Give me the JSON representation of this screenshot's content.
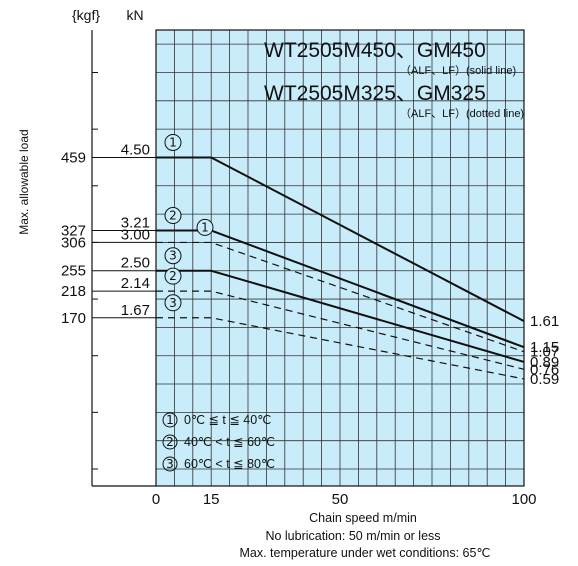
{
  "chart_data": {
    "type": "line",
    "title_solid": "WT2505M450、GM450",
    "subtitle_solid": "（ALF、LF）(solid line)",
    "title_dotted": "WT2505M325、GM325",
    "subtitle_dotted": "（ALF、LF）(dotted line)",
    "ylabel": "Max. allowable load",
    "y_unit_kgf": "{kgf}",
    "y_unit_kn": "kN",
    "xlabel": "Chain speed  m/min",
    "note_lubrication": "No lubrication: 50 m/min or less",
    "note_temperature": "Max. temperature under wet conditions: 65℃",
    "x_ticks": [
      "0",
      "15",
      "50",
      "100"
    ],
    "xlim": [
      0,
      100
    ],
    "ylim_kn": [
      -1.3,
      6.75
    ],
    "grid": true,
    "background_color": "#c9ecfa",
    "line_color": "#111111",
    "legend": [
      {
        "number": "①",
        "label": "0℃ ≦ t ≦ 40℃"
      },
      {
        "number": "②",
        "label": "40℃ < t ≦ 60℃"
      },
      {
        "number": "③",
        "label": "60℃ < t ≦ 80℃"
      }
    ],
    "series": [
      {
        "style": "solid",
        "number": "①",
        "start_kgf": "459",
        "start_kn": "4.50",
        "end_label": "1.61",
        "x": [
          0,
          15,
          100
        ],
        "y": [
          4.5,
          4.5,
          1.61
        ]
      },
      {
        "style": "solid",
        "number": "②",
        "start_kgf": "327",
        "start_kn": "3.21",
        "end_label": "1.15",
        "x": [
          0,
          15,
          100
        ],
        "y": [
          3.21,
          3.21,
          1.15
        ]
      },
      {
        "style": "solid",
        "number": "③",
        "start_kgf": "255",
        "start_kn": "2.50",
        "end_label": "0.89",
        "x": [
          0,
          15,
          100
        ],
        "y": [
          2.5,
          2.5,
          0.89
        ]
      },
      {
        "style": "dotted",
        "number": "①",
        "start_kgf": "306",
        "start_kn": "3.00",
        "end_label": "1.07",
        "x": [
          0,
          15,
          100
        ],
        "y": [
          3.0,
          3.0,
          1.07
        ]
      },
      {
        "style": "dotted",
        "number": "②",
        "start_kgf": "218",
        "start_kn": "2.14",
        "end_label": "0.76",
        "x": [
          0,
          15,
          100
        ],
        "y": [
          2.14,
          2.14,
          0.76
        ]
      },
      {
        "style": "dotted",
        "number": "③",
        "start_kgf": "170",
        "start_kn": "1.67",
        "end_label": "0.59",
        "x": [
          0,
          15,
          100
        ],
        "y": [
          1.67,
          1.67,
          0.59
        ]
      }
    ]
  }
}
